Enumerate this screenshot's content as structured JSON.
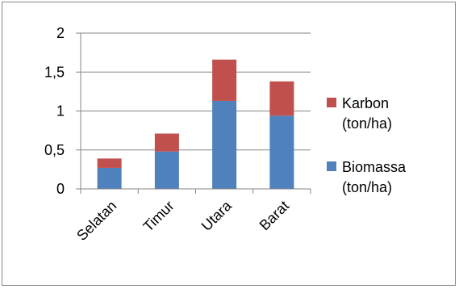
{
  "chart_data": {
    "type": "bar",
    "stacked": true,
    "categories": [
      "Selatan",
      "Timur",
      "Utara",
      "Barat"
    ],
    "series": [
      {
        "name": "Biomassa (ton/ha)",
        "values": [
          0.27,
          0.48,
          1.13,
          0.94
        ],
        "color": "#4f81bd"
      },
      {
        "name": "Karbon (ton/ha)",
        "values": [
          0.12,
          0.23,
          0.53,
          0.44
        ],
        "color": "#c0504d"
      }
    ],
    "ylim": [
      0,
      2
    ],
    "yticks": [
      "0",
      "0,5",
      "1",
      "1,5",
      "2"
    ],
    "ytick_values": [
      0,
      0.5,
      1,
      1.5,
      2
    ],
    "grid": true,
    "legend_position": "right",
    "legend": [
      {
        "line1": "Karbon",
        "line2": "(ton/ha)",
        "color": "#c0504d"
      },
      {
        "line1": "Biomassa",
        "line2": "(ton/ha)",
        "color": "#4f81bd"
      }
    ],
    "title": "",
    "xlabel": "",
    "ylabel": ""
  }
}
